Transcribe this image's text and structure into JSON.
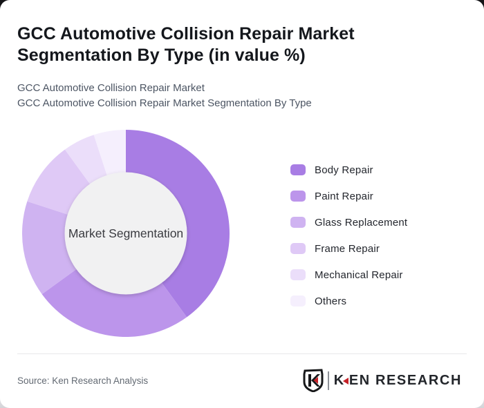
{
  "header": {
    "title": "GCC Automotive Collision Repair Market Segmentation By Type (in value %)",
    "subtitle_line1": "GCC Automotive Collision Repair Market",
    "subtitle_line2": "GCC Automotive Collision Repair Market Segmentation By Type"
  },
  "chart_data": {
    "type": "pie",
    "subtype": "donut",
    "title": "GCC Automotive Collision Repair Market Segmentation By Type (in value %)",
    "center_label": "Market Segmentation",
    "labels": [
      "Body Repair",
      "Paint Repair",
      "Glass Replacement",
      "Frame Repair",
      "Mechanical Repair",
      "Others"
    ],
    "values": [
      40,
      25,
      15,
      10,
      5,
      5
    ],
    "unit": "% of value",
    "values_estimated_from_arcs": true,
    "data_labels_shown": false,
    "colors": [
      "#a87de4",
      "#bc95eb",
      "#cfb3f1",
      "#dfc9f6",
      "#ebdefa",
      "#f5effd"
    ],
    "start_angle_deg": 0,
    "direction": "clockwise",
    "donut_hole_ratio": 0.59,
    "hole_fill": "#f1f1f2",
    "center_label_color": "#3a3b40",
    "legend_position": "right"
  },
  "footer": {
    "source": "Source: Ken Research Analysis",
    "logo": {
      "emblem": "ken-research-shield-k",
      "brand_k": "K",
      "brand_rest": "EN RESEARCH",
      "accent_color": "#c42127"
    }
  }
}
